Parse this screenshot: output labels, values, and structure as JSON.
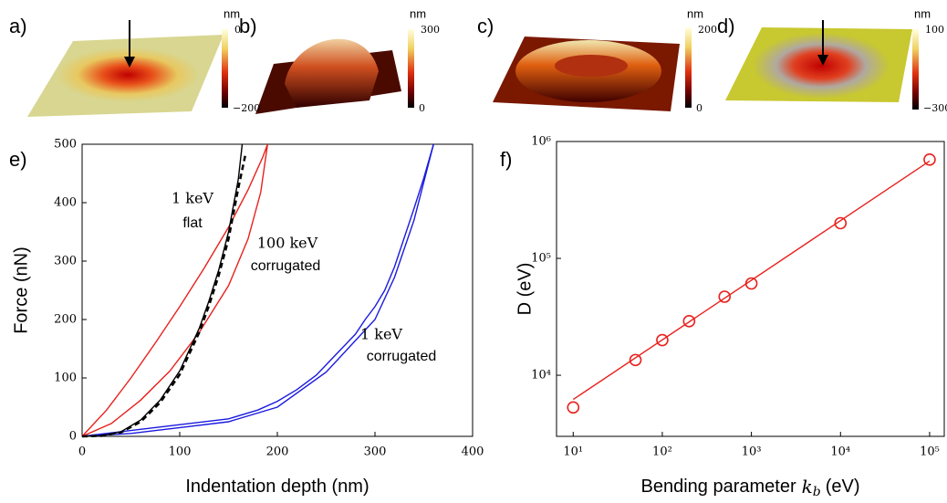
{
  "images": [
    {
      "label": "a)",
      "unit": "nm",
      "top_label": "0",
      "bottom_label": "−200"
    },
    {
      "label": "b)",
      "unit": "nm",
      "top_label": "300",
      "bottom_label": "0"
    },
    {
      "label": "c)",
      "unit": "nm",
      "top_label": "200",
      "bottom_label": "0"
    },
    {
      "label": "d)",
      "unit": "nm",
      "top_label": "100",
      "bottom_label": "−300"
    }
  ],
  "chart_data": [
    {
      "type": "line",
      "label": "e)",
      "xlabel": "Indentation depth (nm)",
      "ylabel": "Force  (nN)",
      "xlim": [
        0,
        400
      ],
      "xticks": [
        0,
        100,
        200,
        300,
        400
      ],
      "ylim": [
        0,
        500
      ],
      "yticks": [
        0,
        100,
        200,
        300,
        400,
        500
      ],
      "series": [
        {
          "color": "#e8211d",
          "dash": false,
          "x": [
            0,
            25,
            50,
            75,
            100,
            125,
            150,
            170,
            185,
            190
          ],
          "values": [
            0,
            45,
            100,
            160,
            222,
            288,
            358,
            422,
            478,
            500
          ]
        },
        {
          "color": "#e8211d",
          "dash": false,
          "x": [
            0,
            30,
            60,
            90,
            120,
            150,
            170,
            183,
            190
          ],
          "values": [
            0,
            22,
            62,
            112,
            178,
            258,
            338,
            418,
            500
          ]
        },
        {
          "color": "#1a1adf",
          "dash": false,
          "x": [
            0,
            50,
            100,
            150,
            180,
            200,
            220,
            240,
            260,
            280,
            290,
            300,
            310,
            320,
            330,
            340,
            350,
            360
          ],
          "values": [
            0,
            10,
            20,
            30,
            45,
            60,
            80,
            105,
            140,
            175,
            200,
            222,
            250,
            290,
            340,
            390,
            442,
            500
          ]
        },
        {
          "color": "#1a1adf",
          "dash": false,
          "x": [
            0,
            50,
            100,
            150,
            200,
            250,
            300,
            320,
            340,
            360
          ],
          "values": [
            0,
            5,
            15,
            25,
            50,
            110,
            200,
            272,
            370,
            500
          ]
        },
        {
          "color": "#000000",
          "dash": false,
          "x": [
            0,
            20,
            40,
            60,
            80,
            100,
            120,
            130,
            140,
            150,
            160,
            164
          ],
          "values": [
            0,
            1,
            8,
            28,
            62,
            112,
            185,
            232,
            285,
            350,
            440,
            500
          ]
        },
        {
          "color": "#000000",
          "dash": true,
          "x": [
            0,
            20,
            40,
            60,
            80,
            100,
            120,
            130,
            140,
            150,
            160,
            167
          ],
          "values": [
            0,
            1,
            7,
            25,
            58,
            106,
            178,
            224,
            276,
            338,
            425,
            480
          ]
        }
      ],
      "annotations": [
        {
          "text": "1 keV",
          "color": "#000000"
        },
        {
          "text": "flat",
          "color": "#000000"
        },
        {
          "text": "100 keV",
          "color": "#e8211d"
        },
        {
          "text": "corrugated",
          "color": "#e8211d"
        },
        {
          "text": "1 keV",
          "color": "#3b3be6"
        },
        {
          "text": "corrugated",
          "color": "#1a1adf"
        }
      ]
    },
    {
      "type": "scatter",
      "label": "f)",
      "xlabel": "Bending parameter",
      "xlabel_symbol": "k",
      "xlabel_subscript": "b",
      "xlabel_unit": "(eV)",
      "ylabel": "D (eV)",
      "xscale": "log",
      "yscale": "log",
      "xlim": [
        6.5,
        146000
      ],
      "xticks": [
        {
          "value": 10,
          "label": "10¹"
        },
        {
          "value": 100,
          "label": "10²"
        },
        {
          "value": 1000,
          "label": "10³"
        },
        {
          "value": 10000,
          "label": "10⁴"
        },
        {
          "value": 100000,
          "label": "10⁵"
        }
      ],
      "ylim": [
        3000,
        1000000
      ],
      "yticks": [
        {
          "value": 10000,
          "label": "10⁴"
        },
        {
          "value": 100000,
          "label": "10⁵"
        },
        {
          "value": 1000000,
          "label": "10⁶"
        }
      ],
      "series": [
        {
          "color": "#e8211d",
          "marker": "circle",
          "x": [
            10,
            50,
            100,
            200,
            500,
            1000,
            10000,
            100000
          ],
          "values": [
            5300,
            13500,
            20000,
            29000,
            47000,
            61000,
            200000,
            700000
          ]
        },
        {
          "color": "#e8211d",
          "marker": "none",
          "x": [
            10,
            100000
          ],
          "values": [
            6200,
            680000
          ]
        }
      ]
    }
  ]
}
